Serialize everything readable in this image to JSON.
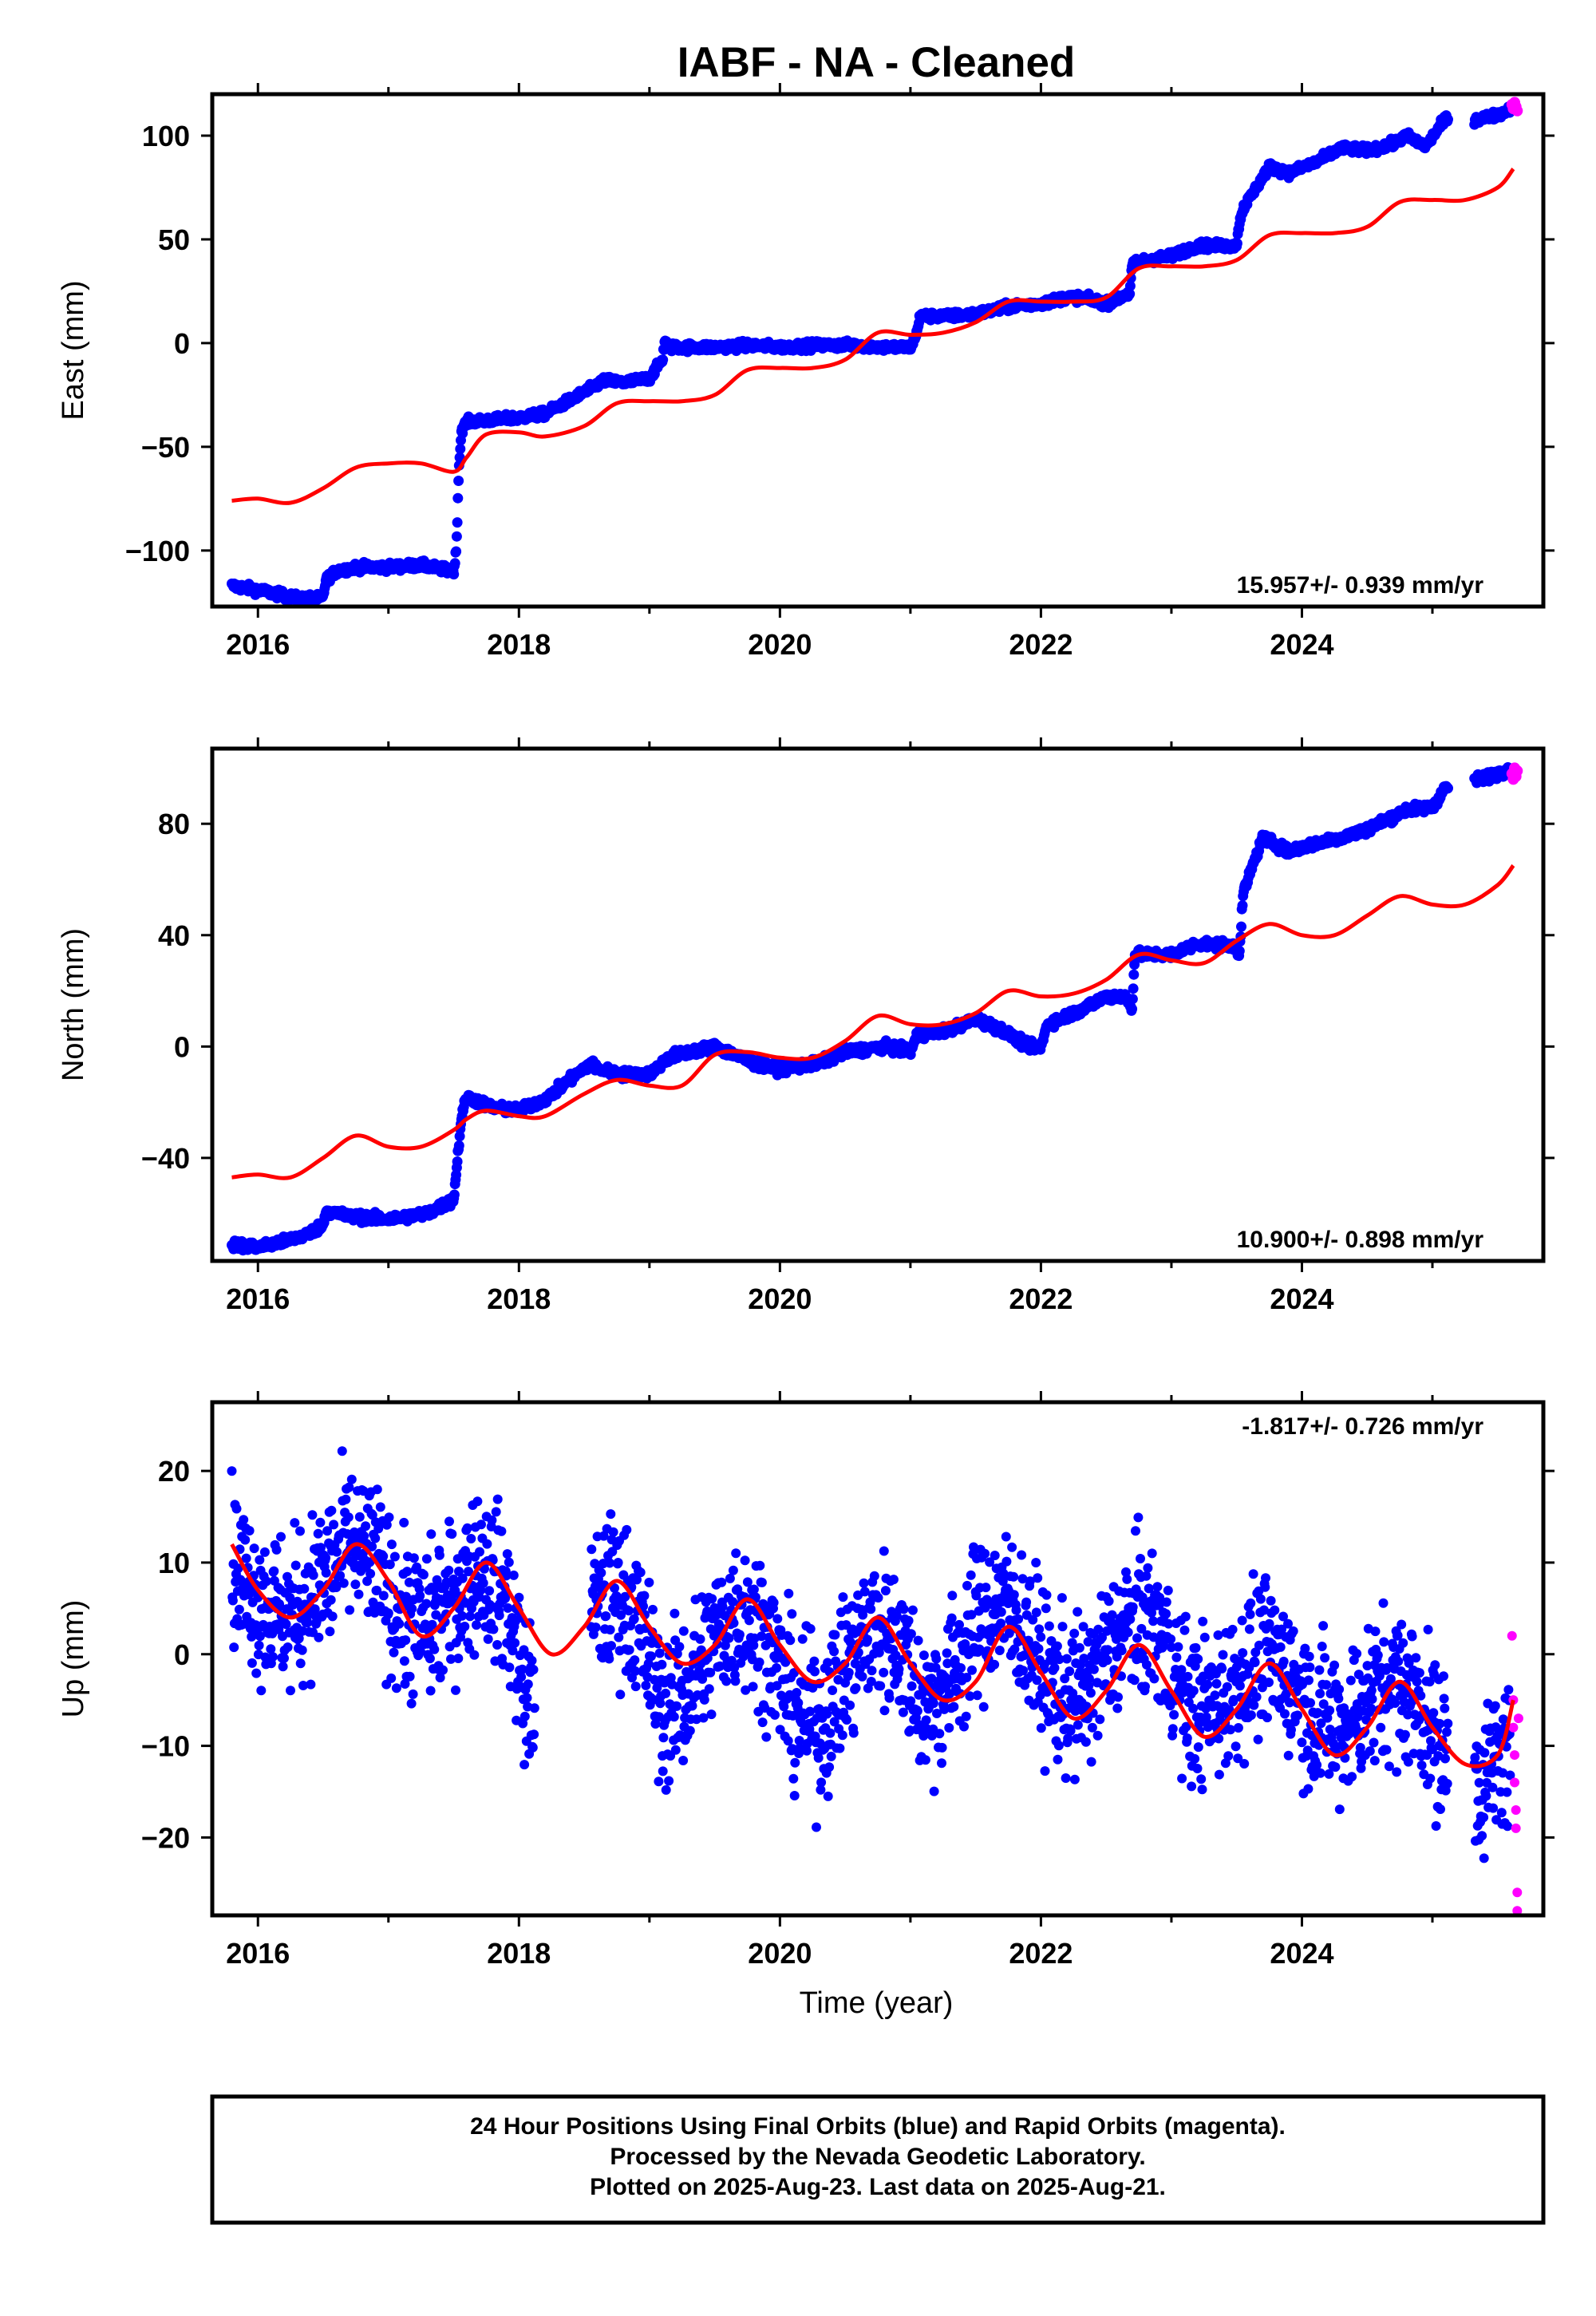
{
  "title": "IABF  - NA - Cleaned",
  "footer": {
    "line1": "24 Hour Positions Using Final Orbits (blue) and Rapid Orbits (magenta).",
    "line2": "Processed by the Nevada Geodetic Laboratory.",
    "line3": "Plotted on 2025-Aug-23. Last data on 2025-Aug-21."
  },
  "colors": {
    "final": "#0000ff",
    "rapid": "#ff00ff",
    "model": "#ff0000"
  },
  "chart_data": [
    {
      "type": "scatter",
      "ylabel": "East (mm)",
      "xlabel": "",
      "rate": "15.957+/- 0.939 mm/yr",
      "rate_position": "bottom-right",
      "xlim": [
        2015.65,
        2025.85
      ],
      "ylim": [
        -127,
        120
      ],
      "xticks": [
        2016,
        2018,
        2020,
        2022,
        2024
      ],
      "xtick_labels": [
        "2016",
        "2018",
        "2020",
        "2022",
        "2024"
      ],
      "yticks": [
        -100,
        -50,
        0,
        50,
        100
      ],
      "ytick_labels": [
        "−100",
        "−50",
        "0",
        "50",
        "100"
      ],
      "series": [
        {
          "role": "final",
          "style": "dense",
          "x": [
            2015.8,
            2015.9,
            2016.0,
            2016.15,
            2016.3,
            2016.5,
            2016.52,
            2016.6,
            2016.75,
            2017.0,
            2017.25,
            2017.5,
            2017.52,
            2017.54,
            2017.56,
            2017.6,
            2017.8,
            2018.0,
            2018.2,
            2018.55,
            2018.65,
            2018.8,
            2019.0,
            2019.1,
            2019.12,
            2019.14,
            2019.3,
            2019.5,
            2019.8,
            2020.0,
            2020.3,
            2020.6,
            2020.8,
            2021.0,
            2021.05,
            2021.07,
            2021.3,
            2021.5,
            2021.8,
            2022.0,
            2022.2,
            2022.3,
            2022.5,
            2022.68,
            2022.7,
            2022.8,
            2023.0,
            2023.2,
            2023.4,
            2023.5,
            2023.52,
            2023.55,
            2023.6,
            2023.7,
            2023.75,
            2023.9,
            2024.1,
            2024.3,
            2024.5,
            2024.7,
            2024.8,
            2024.95,
            2025.1,
            2025.35,
            2025.5,
            2025.6
          ],
          "y": [
            -117,
            -118,
            -119,
            -121,
            -123,
            -123,
            -114,
            -110,
            -108,
            -108,
            -107,
            -110,
            -100,
            -60,
            -42,
            -38,
            -37,
            -36,
            -34,
            -22,
            -18,
            -19,
            -17,
            -8,
            2,
            -2,
            -2,
            -2,
            -1,
            -2,
            -1,
            -1,
            -2,
            -2,
            5,
            13,
            13,
            14,
            18,
            19,
            22,
            22,
            19,
            24,
            38,
            40,
            42,
            47,
            47,
            47,
            58,
            65,
            70,
            80,
            85,
            82,
            87,
            94,
            93,
            96,
            100,
            95,
            108,
            108,
            110,
            113
          ],
          "noise": 1.8
        },
        {
          "role": "rapid",
          "style": "dense",
          "x": [
            2025.61,
            2025.62,
            2025.63,
            2025.64,
            2025.65
          ],
          "y": [
            115,
            113,
            116,
            114,
            112
          ],
          "noise": 0
        },
        {
          "role": "model",
          "style": "line",
          "x": [
            2015.8,
            2016.0,
            2016.25,
            2016.5,
            2016.75,
            2017.0,
            2017.25,
            2017.5,
            2017.6,
            2017.75,
            2018.0,
            2018.2,
            2018.5,
            2018.75,
            2019.0,
            2019.25,
            2019.5,
            2019.75,
            2020.0,
            2020.25,
            2020.5,
            2020.75,
            2021.0,
            2021.25,
            2021.5,
            2021.75,
            2022.0,
            2022.25,
            2022.5,
            2022.75,
            2023.0,
            2023.25,
            2023.5,
            2023.75,
            2024.0,
            2024.25,
            2024.5,
            2024.75,
            2025.0,
            2025.25,
            2025.5,
            2025.62
          ],
          "y": [
            -76,
            -75,
            -77,
            -70,
            -60,
            -58,
            -58,
            -62,
            -55,
            -44,
            -43,
            -45,
            -40,
            -29,
            -28,
            -28,
            -25,
            -13,
            -12,
            -12,
            -8,
            5,
            4,
            5,
            10,
            20,
            20,
            20,
            22,
            36,
            37,
            37,
            40,
            52,
            53,
            53,
            56,
            68,
            69,
            69,
            75,
            84
          ]
        }
      ]
    },
    {
      "type": "scatter",
      "ylabel": "North (mm)",
      "xlabel": "",
      "rate": "10.900+/- 0.898 mm/yr",
      "rate_position": "bottom-right",
      "xlim": [
        2015.65,
        2025.85
      ],
      "ylim": [
        -77,
        107
      ],
      "xticks": [
        2016,
        2018,
        2020,
        2022,
        2024
      ],
      "xtick_labels": [
        "2016",
        "2018",
        "2020",
        "2022",
        "2024"
      ],
      "yticks": [
        -40,
        0,
        40,
        80
      ],
      "ytick_labels": [
        "−40",
        "0",
        "40",
        "80"
      ],
      "series": [
        {
          "role": "final",
          "style": "dense",
          "x": [
            2015.8,
            2016.0,
            2016.2,
            2016.4,
            2016.5,
            2016.52,
            2016.7,
            2017.0,
            2017.3,
            2017.5,
            2017.52,
            2017.56,
            2017.6,
            2017.8,
            2018.0,
            2018.2,
            2018.55,
            2018.6,
            2018.8,
            2019.0,
            2019.12,
            2019.2,
            2019.5,
            2019.8,
            2020.0,
            2020.3,
            2020.5,
            2020.8,
            2021.0,
            2021.05,
            2021.3,
            2021.5,
            2021.7,
            2021.9,
            2022.0,
            2022.05,
            2022.3,
            2022.5,
            2022.65,
            2022.7,
            2022.72,
            2023.0,
            2023.2,
            2023.5,
            2023.52,
            2023.55,
            2023.6,
            2023.7,
            2023.9,
            2024.1,
            2024.3,
            2024.5,
            2024.8,
            2025.0,
            2025.1,
            2025.35,
            2025.5,
            2025.6
          ],
          "y": [
            -71,
            -72,
            -70,
            -67,
            -64,
            -59,
            -61,
            -62,
            -60,
            -55,
            -45,
            -25,
            -18,
            -22,
            -23,
            -19,
            -6,
            -8,
            -10,
            -10,
            -5,
            -3,
            0,
            -6,
            -8,
            -6,
            -2,
            0,
            -2,
            4,
            6,
            10,
            6,
            0,
            0,
            8,
            13,
            18,
            18,
            14,
            33,
            33,
            37,
            36,
            32,
            55,
            62,
            75,
            70,
            73,
            75,
            78,
            85,
            86,
            93,
            96,
            98,
            100
          ],
          "noise": 1.5
        },
        {
          "role": "rapid",
          "style": "dense",
          "x": [
            2025.61,
            2025.62,
            2025.63,
            2025.64,
            2025.65
          ],
          "y": [
            98,
            96,
            100,
            97,
            99
          ],
          "noise": 0
        },
        {
          "role": "model",
          "style": "line",
          "x": [
            2015.8,
            2016.0,
            2016.25,
            2016.5,
            2016.75,
            2017.0,
            2017.25,
            2017.5,
            2017.6,
            2017.75,
            2018.0,
            2018.2,
            2018.5,
            2018.75,
            2019.0,
            2019.25,
            2019.5,
            2019.75,
            2020.0,
            2020.25,
            2020.5,
            2020.75,
            2021.0,
            2021.25,
            2021.5,
            2021.75,
            2022.0,
            2022.25,
            2022.5,
            2022.75,
            2023.0,
            2023.25,
            2023.5,
            2023.75,
            2024.0,
            2024.25,
            2024.5,
            2024.75,
            2025.0,
            2025.25,
            2025.5,
            2025.62
          ],
          "y": [
            -47,
            -46,
            -47,
            -40,
            -32,
            -36,
            -36,
            -30,
            -26,
            -23,
            -25,
            -25,
            -17,
            -12,
            -14,
            -14,
            -3,
            -2,
            -4,
            -4,
            2,
            11,
            8,
            8,
            12,
            20,
            18,
            19,
            24,
            33,
            31,
            30,
            38,
            44,
            40,
            40,
            47,
            54,
            51,
            51,
            58,
            65
          ]
        }
      ]
    },
    {
      "type": "scatter",
      "ylabel": "Up (mm)",
      "xlabel": "Time (year)",
      "rate": "-1.817+/- 0.726 mm/yr",
      "rate_position": "top-right",
      "xlim": [
        2015.65,
        2025.85
      ],
      "ylim": [
        -28.5,
        27.5
      ],
      "xticks": [
        2016,
        2018,
        2020,
        2022,
        2024
      ],
      "xtick_labels": [
        "2016",
        "2018",
        "2020",
        "2022",
        "2024"
      ],
      "yticks": [
        -20,
        -10,
        0,
        10,
        20
      ],
      "ytick_labels": [
        "−20",
        "−10",
        "0",
        "10",
        "20"
      ],
      "series": [
        {
          "role": "final",
          "style": "scatter",
          "x": [
            2015.8,
            2016.0,
            2016.25,
            2016.5,
            2016.7,
            2016.9,
            2017.1,
            2017.3,
            2017.5,
            2017.7,
            2017.9,
            2018.0,
            2018.05,
            2018.58,
            2018.75,
            2018.9,
            2019.1,
            2019.3,
            2019.5,
            2019.7,
            2019.9,
            2020.1,
            2020.3,
            2020.5,
            2020.7,
            2020.9,
            2021.1,
            2021.3,
            2021.5,
            2021.7,
            2021.9,
            2022.1,
            2022.3,
            2022.5,
            2022.7,
            2022.9,
            2023.1,
            2023.3,
            2023.5,
            2023.7,
            2023.9,
            2024.1,
            2024.3,
            2024.5,
            2024.7,
            2024.9,
            2025.05,
            2025.35,
            2025.5,
            2025.6
          ],
          "y": [
            10,
            6,
            4,
            8,
            12,
            10,
            4,
            3,
            6,
            10,
            6,
            0,
            -5,
            5,
            7,
            4,
            -6,
            -4,
            2,
            5,
            2,
            -6,
            -8,
            -2,
            3,
            2,
            -6,
            -3,
            3,
            6,
            2,
            -4,
            -5,
            0,
            4,
            3,
            -5,
            -6,
            -3,
            0,
            -2,
            -7,
            -8,
            -5,
            -3,
            -5,
            -10,
            -14,
            -12,
            -10
          ],
          "noise": 4.2,
          "count": 2400
        },
        {
          "role": "rapid",
          "style": "scatter",
          "x": [
            2025.61,
            2025.62,
            2025.62,
            2025.63,
            2025.63,
            2025.64,
            2025.64,
            2025.65,
            2025.65,
            2025.66
          ],
          "y": [
            2,
            -5,
            -8,
            -11,
            -14,
            -17,
            -19,
            -26,
            -28,
            -7
          ],
          "noise": 0
        },
        {
          "role": "model",
          "style": "line",
          "x": [
            2015.8,
            2016.0,
            2016.25,
            2016.5,
            2016.75,
            2017.0,
            2017.25,
            2017.5,
            2017.75,
            2018.0,
            2018.25,
            2018.5,
            2018.75,
            2019.0,
            2019.25,
            2019.5,
            2019.75,
            2020.0,
            2020.25,
            2020.5,
            2020.75,
            2021.0,
            2021.25,
            2021.5,
            2021.75,
            2022.0,
            2022.25,
            2022.5,
            2022.75,
            2023.0,
            2023.25,
            2023.5,
            2023.75,
            2024.0,
            2024.25,
            2024.5,
            2024.75,
            2025.0,
            2025.25,
            2025.5,
            2025.62
          ],
          "y": [
            12,
            7,
            4,
            7,
            12,
            8,
            2,
            5,
            10,
            5,
            0,
            3,
            8,
            3,
            -1,
            1,
            6,
            1,
            -3,
            -1,
            4,
            -1,
            -5,
            -3,
            3,
            -2,
            -7,
            -4,
            1,
            -4,
            -9,
            -6,
            -1,
            -6,
            -11,
            -8,
            -3,
            -8,
            -12,
            -11,
            -5
          ]
        }
      ]
    }
  ]
}
